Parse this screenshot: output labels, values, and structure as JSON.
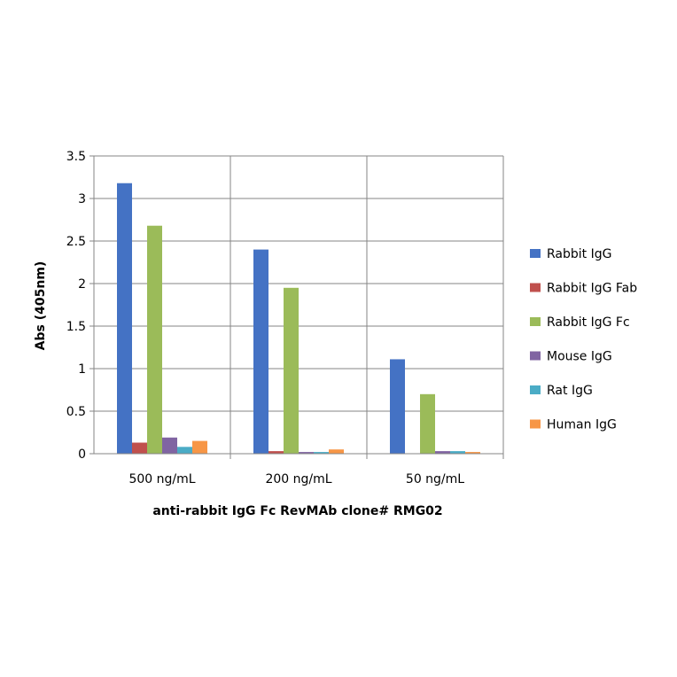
{
  "chart_data": {
    "type": "bar",
    "categories": [
      "500 ng/mL",
      "200 ng/mL",
      "50 ng/mL"
    ],
    "series": [
      {
        "name": "Rabbit IgG",
        "color": "#4472C4",
        "values": [
          3.18,
          2.4,
          1.11
        ]
      },
      {
        "name": "Rabbit IgG Fab",
        "color": "#C0504D",
        "values": [
          0.13,
          0.03,
          0.0
        ]
      },
      {
        "name": "Rabbit IgG Fc",
        "color": "#9BBB59",
        "values": [
          2.68,
          1.95,
          0.7
        ]
      },
      {
        "name": "Mouse IgG",
        "color": "#8064A2",
        "values": [
          0.19,
          0.02,
          0.03
        ]
      },
      {
        "name": "Rat IgG",
        "color": "#4BACC6",
        "values": [
          0.08,
          0.02,
          0.03
        ]
      },
      {
        "name": "Human IgG",
        "color": "#F79646",
        "values": [
          0.15,
          0.05,
          0.02
        ]
      }
    ],
    "xlabel": "anti-rabbit IgG  Fc RevMAb  clone# RMG02",
    "ylabel": "Abs (405nm)",
    "ylim": [
      0,
      3.5
    ],
    "yticks": [
      "0",
      "0.5",
      "1",
      "1.5",
      "2",
      "2.5",
      "3",
      "3.5"
    ],
    "grid": true,
    "legend_position": "right"
  }
}
